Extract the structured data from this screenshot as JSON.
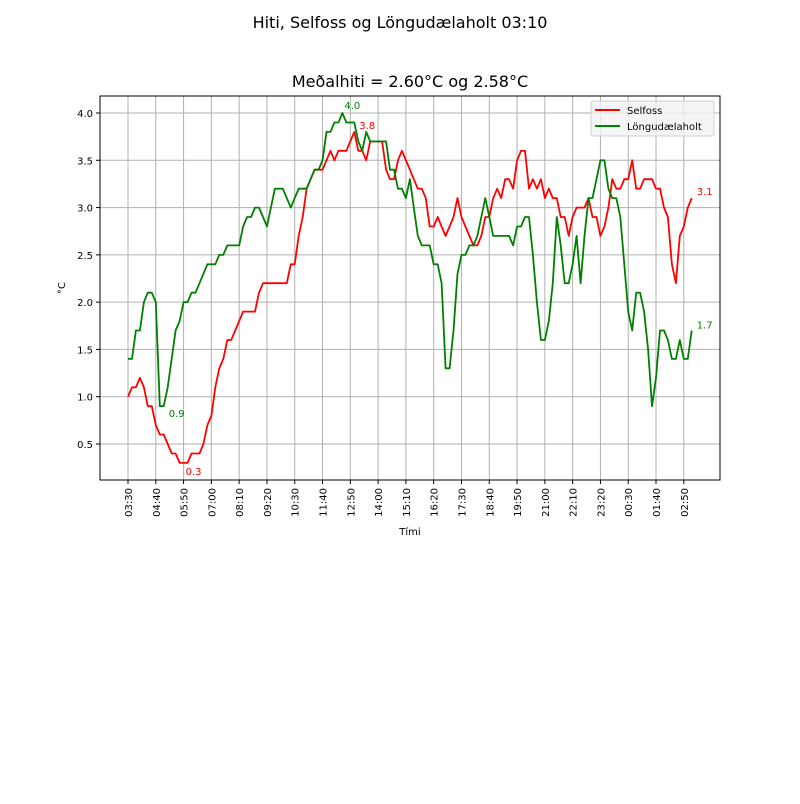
{
  "figure": {
    "suptitle": "Hiti, Selfoss og Löngudælaholt 03:10",
    "title": "Meðalhiti =  2.60°C og  2.58°C"
  },
  "chart_data": {
    "type": "line",
    "title": "Meðalhiti =  2.60°C og  2.58°C",
    "suptitle": "Hiti, Selfoss og Löngudælaholt 03:10",
    "xlabel": "Tími",
    "ylabel": "°C",
    "ylim": [
      0.12,
      4.18
    ],
    "yticks": [
      0.5,
      1.0,
      1.5,
      2.0,
      2.5,
      3.0,
      3.5,
      4.0
    ],
    "ytick_labels": [
      "0.5",
      "1.0",
      "1.5",
      "2.0",
      "2.5",
      "3.0",
      "3.5",
      "4.0"
    ],
    "xtick_labels": [
      "03:30",
      "04:40",
      "05:50",
      "07:00",
      "08:10",
      "09:20",
      "10:30",
      "11:40",
      "12:50",
      "14:00",
      "15:10",
      "16:20",
      "17:30",
      "18:40",
      "19:50",
      "21:00",
      "22:10",
      "23:20",
      "00:30",
      "01:40",
      "02:50"
    ],
    "xtick_step": 7,
    "x_interval_minutes": 10,
    "grid": true,
    "legend_position": "upper right",
    "series": [
      {
        "name": "Selfoss",
        "color": "#ff0000",
        "values": [
          1.0,
          1.1,
          1.1,
          1.2,
          1.1,
          0.9,
          0.9,
          0.7,
          0.6,
          0.6,
          0.5,
          0.4,
          0.4,
          0.3,
          0.3,
          0.3,
          0.4,
          0.4,
          0.4,
          0.5,
          0.7,
          0.8,
          1.1,
          1.3,
          1.4,
          1.6,
          1.6,
          1.7,
          1.8,
          1.9,
          1.9,
          1.9,
          1.9,
          2.1,
          2.2,
          2.2,
          2.2,
          2.2,
          2.2,
          2.2,
          2.2,
          2.4,
          2.4,
          2.7,
          2.9,
          3.2,
          3.3,
          3.4,
          3.4,
          3.4,
          3.5,
          3.6,
          3.5,
          3.6,
          3.6,
          3.6,
          3.7,
          3.8,
          3.6,
          3.6,
          3.5,
          3.7,
          3.7,
          3.7,
          3.7,
          3.4,
          3.3,
          3.3,
          3.5,
          3.6,
          3.5,
          3.4,
          3.3,
          3.2,
          3.2,
          3.1,
          2.8,
          2.8,
          2.9,
          2.8,
          2.7,
          2.8,
          2.9,
          3.1,
          2.9,
          2.8,
          2.7,
          2.6,
          2.6,
          2.7,
          2.9,
          2.9,
          3.1,
          3.2,
          3.1,
          3.3,
          3.3,
          3.2,
          3.5,
          3.6,
          3.6,
          3.2,
          3.3,
          3.2,
          3.3,
          3.1,
          3.2,
          3.1,
          3.1,
          2.9,
          2.9,
          2.7,
          2.9,
          3.0,
          3.0,
          3.0,
          3.1,
          2.9,
          2.9,
          2.7,
          2.8,
          3.0,
          3.3,
          3.2,
          3.2,
          3.3,
          3.3,
          3.5,
          3.2,
          3.2,
          3.3,
          3.3,
          3.3,
          3.2,
          3.2,
          3.0,
          2.9,
          2.4,
          2.2,
          2.7,
          2.8,
          3.0,
          3.1
        ],
        "annotations": [
          {
            "label": "0.3",
            "index": 14,
            "value": 0.3
          },
          {
            "label": "3.8",
            "index": 57,
            "value": 3.8
          },
          {
            "label": "3.1",
            "index": 142,
            "value": 3.1
          }
        ]
      },
      {
        "name": "Löngudælaholt",
        "color": "#008000",
        "values": [
          1.4,
          1.4,
          1.7,
          1.7,
          2.0,
          2.1,
          2.1,
          2.0,
          0.9,
          0.9,
          1.1,
          1.4,
          1.7,
          1.8,
          2.0,
          2.0,
          2.1,
          2.1,
          2.2,
          2.3,
          2.4,
          2.4,
          2.4,
          2.5,
          2.5,
          2.6,
          2.6,
          2.6,
          2.6,
          2.8,
          2.9,
          2.9,
          3.0,
          3.0,
          2.9,
          2.8,
          3.0,
          3.2,
          3.2,
          3.2,
          3.1,
          3.0,
          3.1,
          3.2,
          3.2,
          3.2,
          3.3,
          3.4,
          3.4,
          3.5,
          3.8,
          3.8,
          3.9,
          3.9,
          4.0,
          3.9,
          3.9,
          3.9,
          3.7,
          3.6,
          3.8,
          3.7,
          3.7,
          3.7,
          3.7,
          3.7,
          3.4,
          3.4,
          3.2,
          3.2,
          3.1,
          3.3,
          3.0,
          2.7,
          2.6,
          2.6,
          2.6,
          2.4,
          2.4,
          2.2,
          1.3,
          1.3,
          1.7,
          2.3,
          2.5,
          2.5,
          2.6,
          2.6,
          2.7,
          2.9,
          3.1,
          2.9,
          2.7,
          2.7,
          2.7,
          2.7,
          2.7,
          2.6,
          2.8,
          2.8,
          2.9,
          2.9,
          2.5,
          2.0,
          1.6,
          1.6,
          1.8,
          2.2,
          2.9,
          2.6,
          2.2,
          2.2,
          2.4,
          2.7,
          2.2,
          2.7,
          3.1,
          3.1,
          3.3,
          3.5,
          3.5,
          3.2,
          3.1,
          3.1,
          2.9,
          2.4,
          1.9,
          1.7,
          2.1,
          2.1,
          1.9,
          1.5,
          0.9,
          1.2,
          1.7,
          1.7,
          1.6,
          1.4,
          1.4,
          1.6,
          1.4,
          1.4,
          1.7
        ],
        "annotations": [
          {
            "label": "0.9",
            "index": 9,
            "value": 0.9
          },
          {
            "label": "4.0",
            "index": 54,
            "value": 4.0
          },
          {
            "label": "1.7",
            "index": 142,
            "value": 1.7
          }
        ]
      }
    ]
  }
}
